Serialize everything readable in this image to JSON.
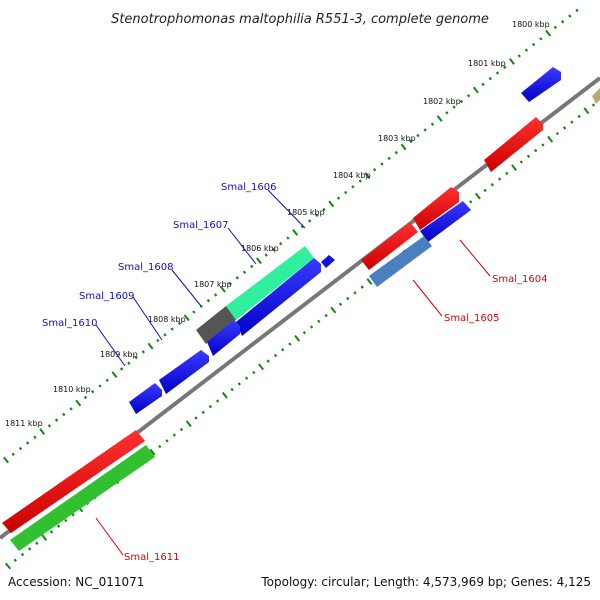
{
  "title": "Stenotrophomonas maltophilia R551-3, complete genome",
  "footer": {
    "accession": "Accession: NC_011071",
    "summary": "Topology: circular; Length: 4,573,969 bp; Genes: 4,125"
  },
  "scale_labels": [
    "1800 kbp",
    "1801 kbp",
    "1802 kbp",
    "1803 kbp",
    "1804 kbp",
    "1805 kbp",
    "1806 kbp",
    "1807 kbp",
    "1808 kbp",
    "1809 kbp",
    "1810 kbp",
    "1811 kbp"
  ],
  "gene_labels": {
    "smal_1606": "Smal_1606",
    "smal_1607": "Smal_1607",
    "smal_1608": "Smal_1608",
    "smal_1609": "Smal_1609",
    "smal_1610": "Smal_1610",
    "smal_1604": "Smal_1604",
    "smal_1605": "Smal_1605",
    "smal_1611": "Smal_1611"
  },
  "colors": {
    "forward_gene": "#1010e0",
    "forward_label": "#1010c0",
    "reverse_gene": "#ee0000",
    "reverse_label": "#dd0000",
    "highlight_cyan": "#30f0a0",
    "highlight_green": "#30c030",
    "highlight_steel": "#4a7fc0",
    "dark_gray": "#555555",
    "khaki": "#b5ad70",
    "backbone": "#777777",
    "ticks": "#118811"
  }
}
